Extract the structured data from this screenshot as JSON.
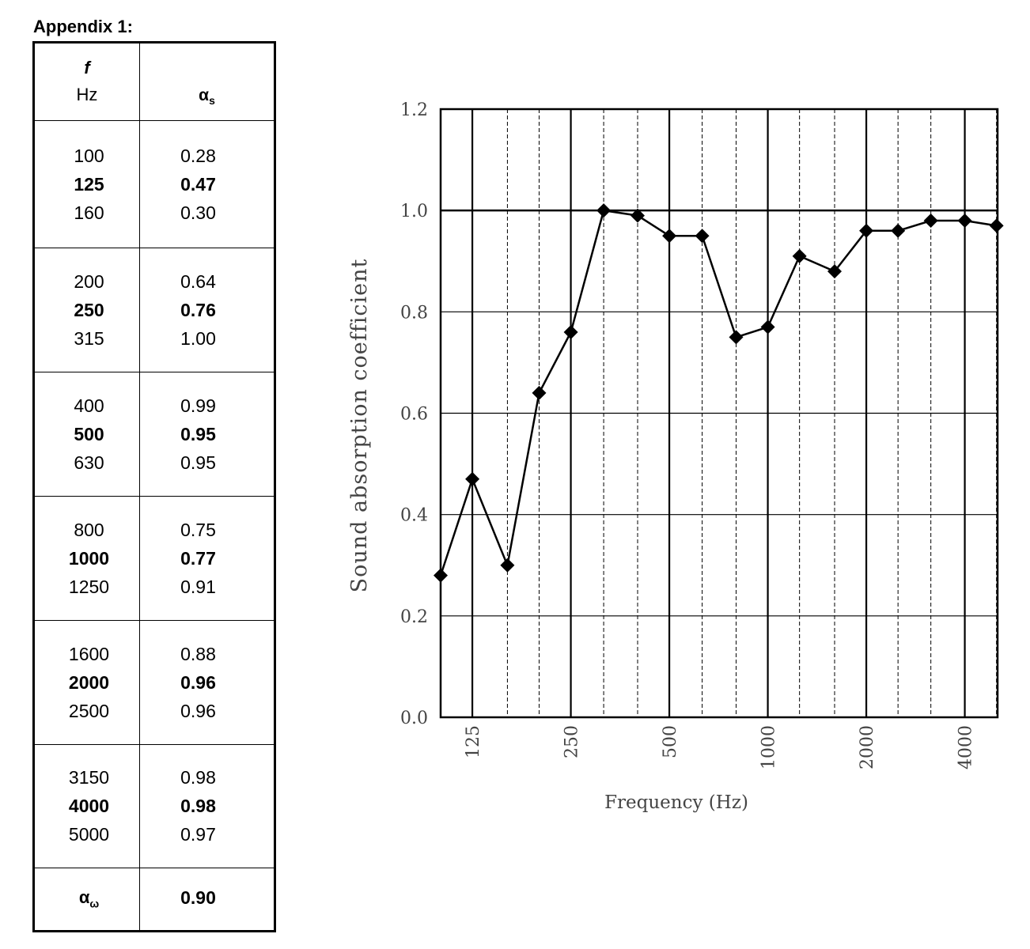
{
  "appendix_title": "Appendix 1:",
  "table": {
    "header_f": "f",
    "header_hz": "Hz",
    "header_alpha": "α",
    "header_alpha_sub": "s",
    "groups": [
      {
        "rows": [
          {
            "f": "100",
            "a": "0.28"
          },
          {
            "f": "125",
            "a": "0.47",
            "bold": true
          },
          {
            "f": "160",
            "a": "0.30"
          }
        ]
      },
      {
        "rows": [
          {
            "f": "200",
            "a": "0.64"
          },
          {
            "f": "250",
            "a": "0.76",
            "bold": true
          },
          {
            "f": "315",
            "a": "1.00"
          }
        ]
      },
      {
        "rows": [
          {
            "f": "400",
            "a": "0.99"
          },
          {
            "f": "500",
            "a": "0.95",
            "bold": true
          },
          {
            "f": "630",
            "a": "0.95"
          }
        ]
      },
      {
        "rows": [
          {
            "f": "800",
            "a": "0.75"
          },
          {
            "f": "1000",
            "a": "0.77",
            "bold": true
          },
          {
            "f": "1250",
            "a": "0.91"
          }
        ]
      },
      {
        "rows": [
          {
            "f": "1600",
            "a": "0.88"
          },
          {
            "f": "2000",
            "a": "0.96",
            "bold": true
          },
          {
            "f": "2500",
            "a": "0.96"
          }
        ]
      },
      {
        "rows": [
          {
            "f": "3150",
            "a": "0.98"
          },
          {
            "f": "4000",
            "a": "0.98",
            "bold": true
          },
          {
            "f": "5000",
            "a": "0.97"
          }
        ]
      }
    ],
    "rating_label": "α",
    "rating_label_sub": "ω",
    "rating_value": "0.90"
  },
  "chart_data": {
    "type": "line",
    "x": [
      100,
      125,
      160,
      200,
      250,
      315,
      400,
      500,
      630,
      800,
      1000,
      1250,
      1600,
      2000,
      2500,
      3150,
      4000,
      5000
    ],
    "y": [
      0.28,
      0.47,
      0.3,
      0.64,
      0.76,
      1.0,
      0.99,
      0.95,
      0.95,
      0.75,
      0.77,
      0.91,
      0.88,
      0.96,
      0.96,
      0.98,
      0.98,
      0.97
    ],
    "marker": "diamond",
    "xlabel": "Frequency (Hz)",
    "ylabel": "Sound absorption coefficient",
    "xscale": "log",
    "xticks": [
      "125",
      "250",
      "500",
      "1000",
      "2000",
      "4000"
    ],
    "yticks": [
      "0.0",
      "0.2",
      "0.4",
      "0.6",
      "0.8",
      "1.0",
      "1.2"
    ],
    "ylim": [
      0,
      1.2
    ],
    "grid": true
  }
}
